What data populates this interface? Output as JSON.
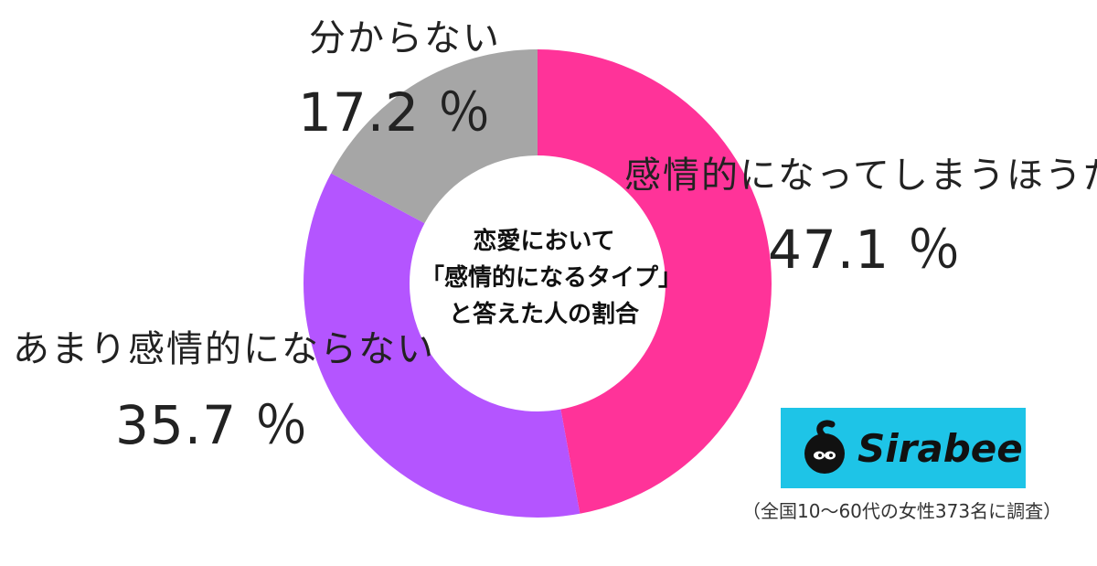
{
  "chart_data": {
    "type": "pie",
    "donut": true,
    "title": "恋愛において「感情的になるタイプ」と答えた人の割合",
    "center_lines": [
      "恋愛において",
      "「感情的になるタイプ」",
      "と答えた人の割合"
    ],
    "slices": [
      {
        "label": "感情的になってしまうほうだ",
        "value": 47.1,
        "display": "47.1 ％",
        "color": "#ff3399"
      },
      {
        "label": "あまり感情的にならない",
        "value": 35.7,
        "display": "35.7 ％",
        "color": "#b455ff"
      },
      {
        "label": "分からない",
        "value": 17.2,
        "display": "17.2 ％",
        "color": "#a6a6a6"
      }
    ],
    "start": "top",
    "direction": "clockwise",
    "legend": "none"
  },
  "logo": {
    "text": "Sirabee",
    "background": "#1ec4e7"
  },
  "footnote": "（全国10～60代の女性373名に調査）"
}
